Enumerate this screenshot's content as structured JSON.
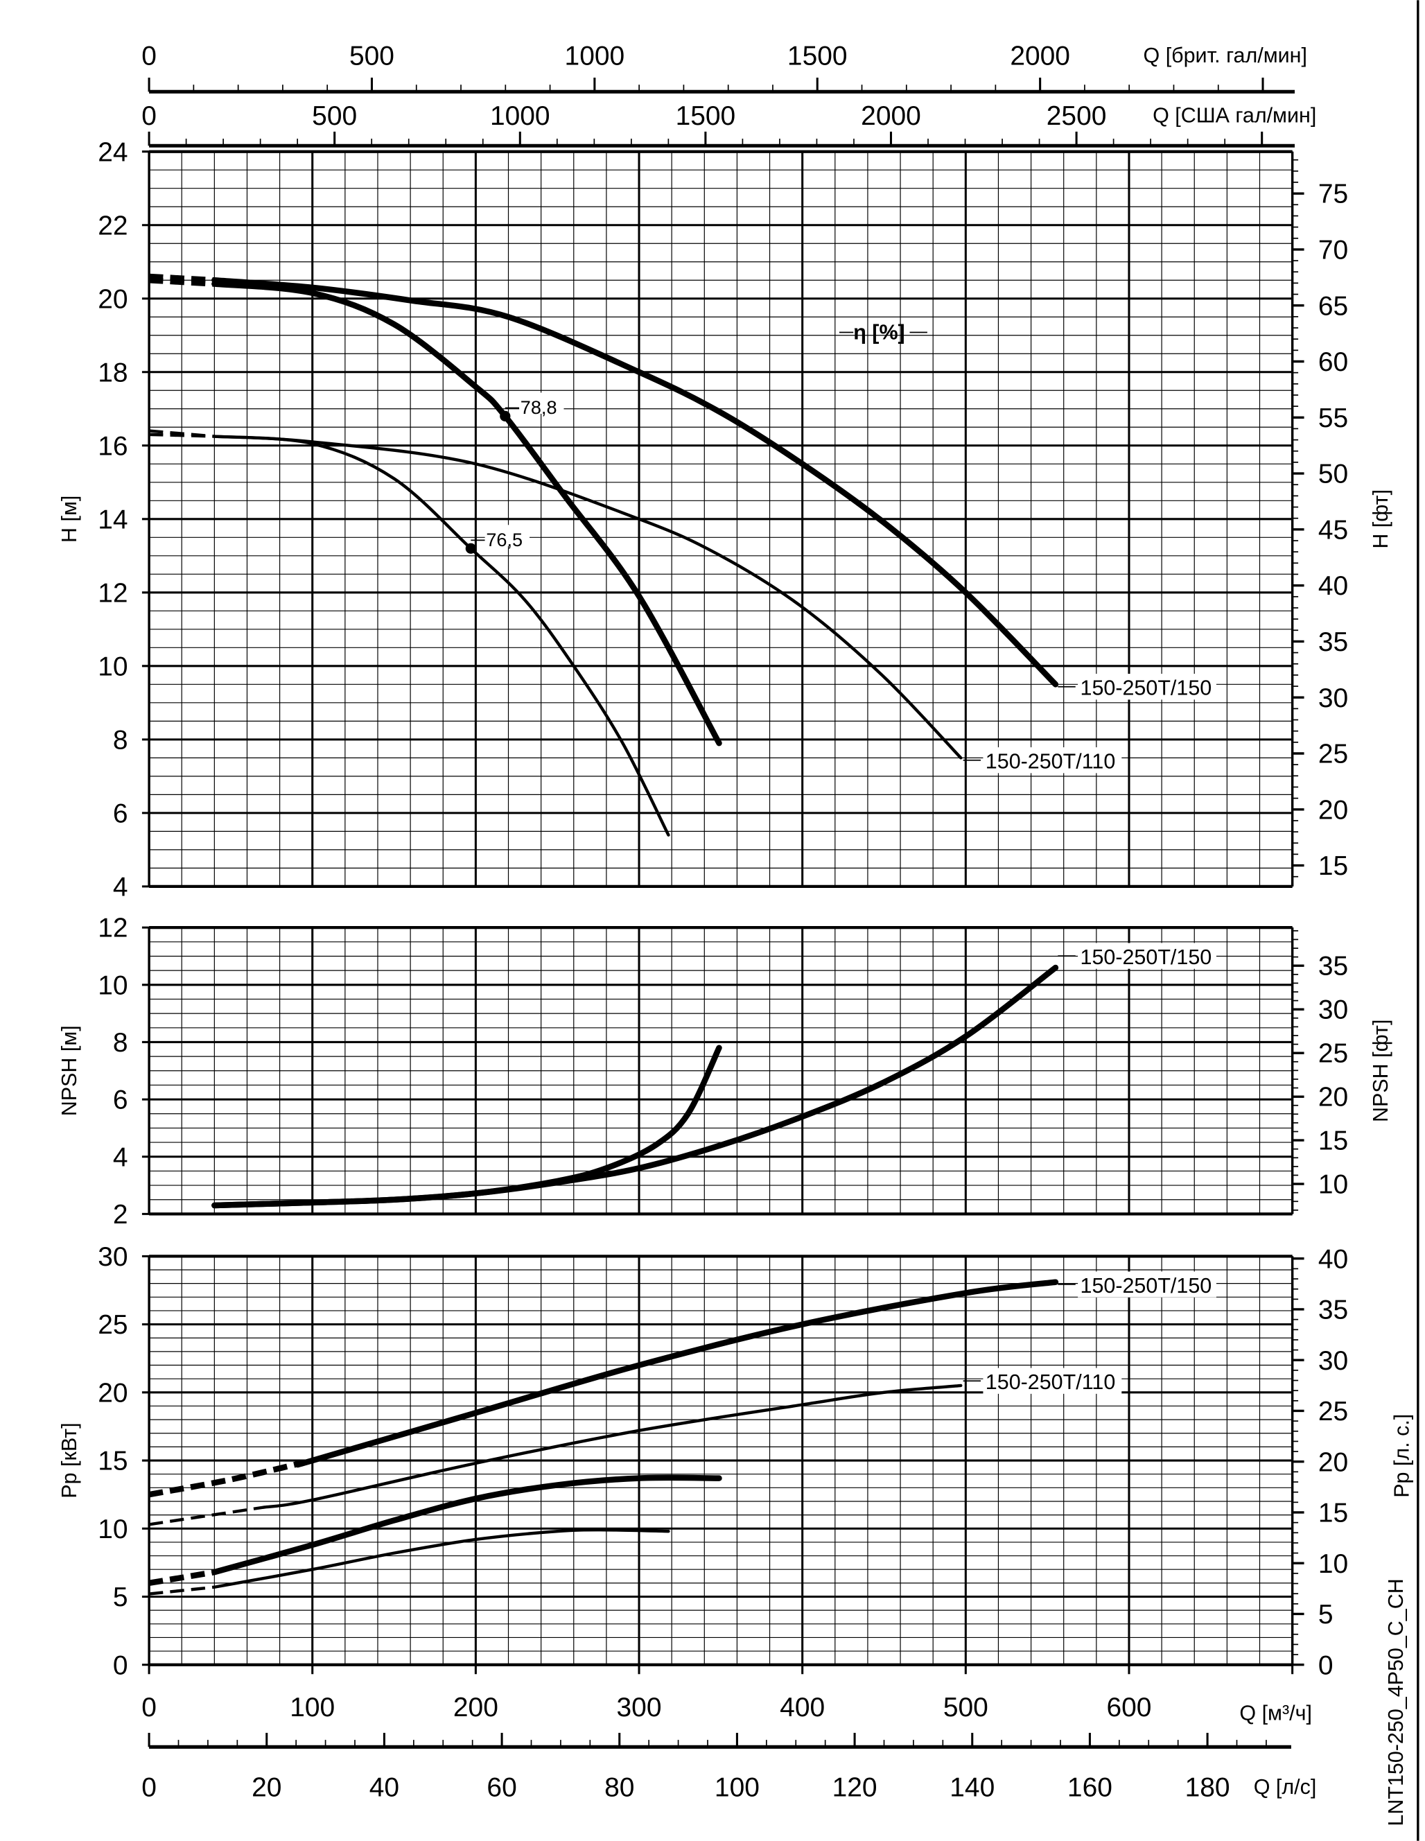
{
  "chart_data": {
    "type": "line",
    "title": "",
    "code": "LNT150-250_4P50_C_CH",
    "efficiency_label": "η [%]",
    "x": {
      "label": "Q [м³/ч]",
      "lim": [
        0,
        700
      ],
      "ticks": [
        0,
        100,
        200,
        300,
        400,
        500,
        600
      ]
    },
    "x_secondary": [
      {
        "id": "ls",
        "label": "Q [л/с]",
        "factor_m3h": 3.6,
        "ticks": [
          0,
          20,
          40,
          60,
          80,
          100,
          120,
          140,
          160,
          180
        ],
        "minor": 5,
        "position": "bottom"
      },
      {
        "id": "usgpm",
        "label": "Q [США гал/мин]",
        "factor_m3h": 0.22712,
        "ticks": [
          0,
          500,
          1000,
          1500,
          2000,
          2500
        ],
        "minor": 100,
        "position": "top"
      },
      {
        "id": "ukgpm",
        "label": "Q [брит. гал/мин]",
        "factor_m3h": 0.27277,
        "ticks": [
          0,
          500,
          1000,
          1500,
          2000
        ],
        "minor": 100,
        "position": "top"
      }
    ],
    "panels": [
      {
        "id": "head",
        "ylabel": "H [м]",
        "ylabel_right": "H [фт]",
        "ylim": [
          4,
          24
        ],
        "yticks": [
          4,
          6,
          8,
          10,
          12,
          14,
          16,
          18,
          20,
          22,
          24
        ],
        "minor": 0.5,
        "right_factor": 0.3048,
        "right_ticks": [
          15,
          20,
          25,
          30,
          35,
          40,
          45,
          50,
          55,
          60,
          65,
          70,
          75
        ],
        "curves": [
          {
            "name": "150-250T/150",
            "thick": true,
            "dashed_until": 40,
            "label": "150-250T/150",
            "points": [
              [
                0,
                20.6
              ],
              [
                40,
                20.5
              ],
              [
                100,
                20.3
              ],
              [
                160,
                19.95
              ],
              [
                220,
                19.5
              ],
              [
                300,
                18.0
              ],
              [
                350,
                16.9
              ],
              [
                400,
                15.5
              ],
              [
                450,
                13.9
              ],
              [
                500,
                12.0
              ],
              [
                555,
                9.5
              ]
            ]
          },
          {
            "name": "150-250T/150 reduced",
            "thick": true,
            "dashed_until": 40,
            "points": [
              [
                0,
                20.5
              ],
              [
                40,
                20.4
              ],
              [
                100,
                20.15
              ],
              [
                150,
                19.3
              ],
              [
                200,
                17.6
              ],
              [
                218,
                16.8
              ],
              [
                255,
                14.6
              ],
              [
                300,
                11.9
              ],
              [
                349,
                7.9
              ]
            ]
          },
          {
            "name": "150-250T/110",
            "thick": false,
            "dashed_until": 40,
            "label": "150-250T/110",
            "points": [
              [
                0,
                16.4
              ],
              [
                40,
                16.25
              ],
              [
                100,
                16.1
              ],
              [
                200,
                15.5
              ],
              [
                300,
                14.0
              ],
              [
                350,
                13.0
              ],
              [
                400,
                11.6
              ],
              [
                450,
                9.7
              ],
              [
                497,
                7.5
              ]
            ]
          },
          {
            "name": "150-250T/110 reduced",
            "thick": false,
            "dashed_until": 40,
            "points": [
              [
                0,
                16.3
              ],
              [
                40,
                16.25
              ],
              [
                100,
                16.05
              ],
              [
                150,
                15.1
              ],
              [
                197,
                13.2
              ],
              [
                230,
                11.8
              ],
              [
                260,
                10.0
              ],
              [
                290,
                7.9
              ],
              [
                318,
                5.4
              ]
            ]
          }
        ],
        "markers": [
          {
            "q": 218,
            "h": 16.8,
            "label": "78,8"
          },
          {
            "q": 197,
            "h": 13.2,
            "label": "76,5"
          }
        ]
      },
      {
        "id": "npsh",
        "ylabel": "NPSH [м]",
        "ylabel_right": "NPSH [фт]",
        "ylim": [
          2,
          12
        ],
        "yticks": [
          2,
          4,
          6,
          8,
          10,
          12
        ],
        "minor": 0.5,
        "right_factor": 0.3048,
        "right_ticks": [
          10,
          15,
          20,
          25,
          30,
          35
        ],
        "curves": [
          {
            "name": "150-250T/150",
            "thick": true,
            "dashed_until": 0,
            "label": "150-250T/150",
            "points": [
              [
                40,
                2.3
              ],
              [
                100,
                2.4
              ],
              [
                150,
                2.5
              ],
              [
                200,
                2.72
              ],
              [
                250,
                3.1
              ],
              [
                300,
                3.6
              ],
              [
                350,
                4.4
              ],
              [
                400,
                5.4
              ],
              [
                450,
                6.6
              ],
              [
                500,
                8.2
              ],
              [
                555,
                10.6
              ]
            ]
          },
          {
            "name": "150-250T/150 reduced",
            "thick": true,
            "dashed_until": 0,
            "points": [
              [
                40,
                2.3
              ],
              [
                100,
                2.4
              ],
              [
                150,
                2.5
              ],
              [
                200,
                2.72
              ],
              [
                250,
                3.15
              ],
              [
                280,
                3.6
              ],
              [
                310,
                4.4
              ],
              [
                330,
                5.5
              ],
              [
                349,
                7.8
              ]
            ]
          }
        ]
      },
      {
        "id": "power",
        "ylabel": "Pp [кВт]",
        "ylabel_right": "Pp [л. с.]",
        "ylim": [
          0,
          30
        ],
        "yticks": [
          0,
          5,
          10,
          15,
          20,
          25,
          30
        ],
        "minor": 1,
        "right_factor": 0.7457,
        "right_ticks": [
          0,
          5,
          10,
          15,
          20,
          25,
          30,
          35,
          40
        ],
        "curves": [
          {
            "name": "150-250T/150",
            "thick": true,
            "dashed_until": 95,
            "label": "150-250T/150",
            "points": [
              [
                0,
                12.5
              ],
              [
                50,
                13.6
              ],
              [
                100,
                15.0
              ],
              [
                200,
                18.5
              ],
              [
                300,
                22.0
              ],
              [
                400,
                25.0
              ],
              [
                500,
                27.3
              ],
              [
                555,
                28.1
              ]
            ]
          },
          {
            "name": "150-250T/110",
            "thick": false,
            "dashed_until": 70,
            "label": "150-250T/110",
            "points": [
              [
                0,
                10.3
              ],
              [
                50,
                11.2
              ],
              [
                100,
                12.1
              ],
              [
                200,
                14.8
              ],
              [
                300,
                17.2
              ],
              [
                400,
                19.1
              ],
              [
                450,
                20.0
              ],
              [
                497,
                20.5
              ]
            ]
          },
          {
            "name": "150-250T/150 reduced",
            "thick": true,
            "dashed_until": 40,
            "points": [
              [
                0,
                6.0
              ],
              [
                40,
                6.8
              ],
              [
                100,
                8.8
              ],
              [
                150,
                10.6
              ],
              [
                200,
                12.2
              ],
              [
                250,
                13.2
              ],
              [
                300,
                13.7
              ],
              [
                349,
                13.7
              ]
            ]
          },
          {
            "name": "150-250T/110 reduced",
            "thick": false,
            "dashed_until": 40,
            "points": [
              [
                0,
                5.2
              ],
              [
                40,
                5.7
              ],
              [
                100,
                7.0
              ],
              [
                150,
                8.2
              ],
              [
                200,
                9.2
              ],
              [
                250,
                9.8
              ],
              [
                280,
                9.9
              ],
              [
                318,
                9.8
              ]
            ]
          }
        ]
      }
    ]
  }
}
